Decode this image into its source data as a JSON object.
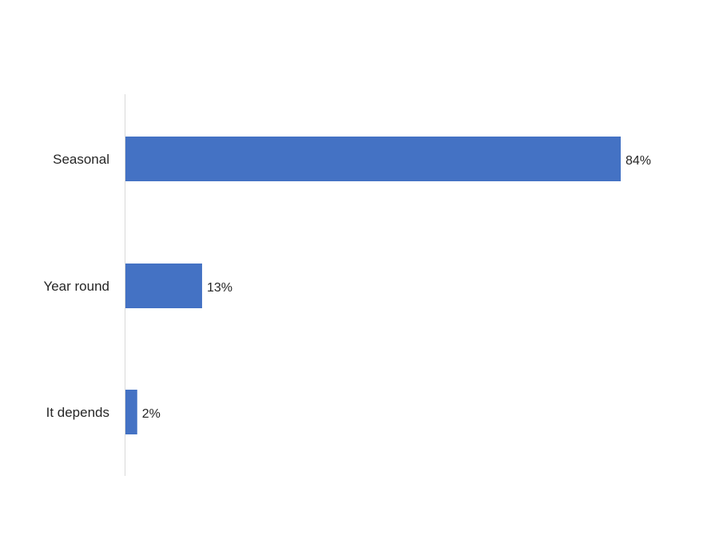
{
  "chart_data": {
    "type": "bar",
    "orientation": "horizontal",
    "categories": [
      "Seasonal",
      "Year round",
      "It depends"
    ],
    "values": [
      84,
      13,
      2
    ],
    "value_labels": [
      "84%",
      "13%",
      "2%"
    ],
    "unit": "%",
    "xlim": [
      0,
      100
    ],
    "grid": false,
    "legend": "none",
    "bar_color": "#4472C4",
    "axis_color": "#D9D9D9"
  }
}
